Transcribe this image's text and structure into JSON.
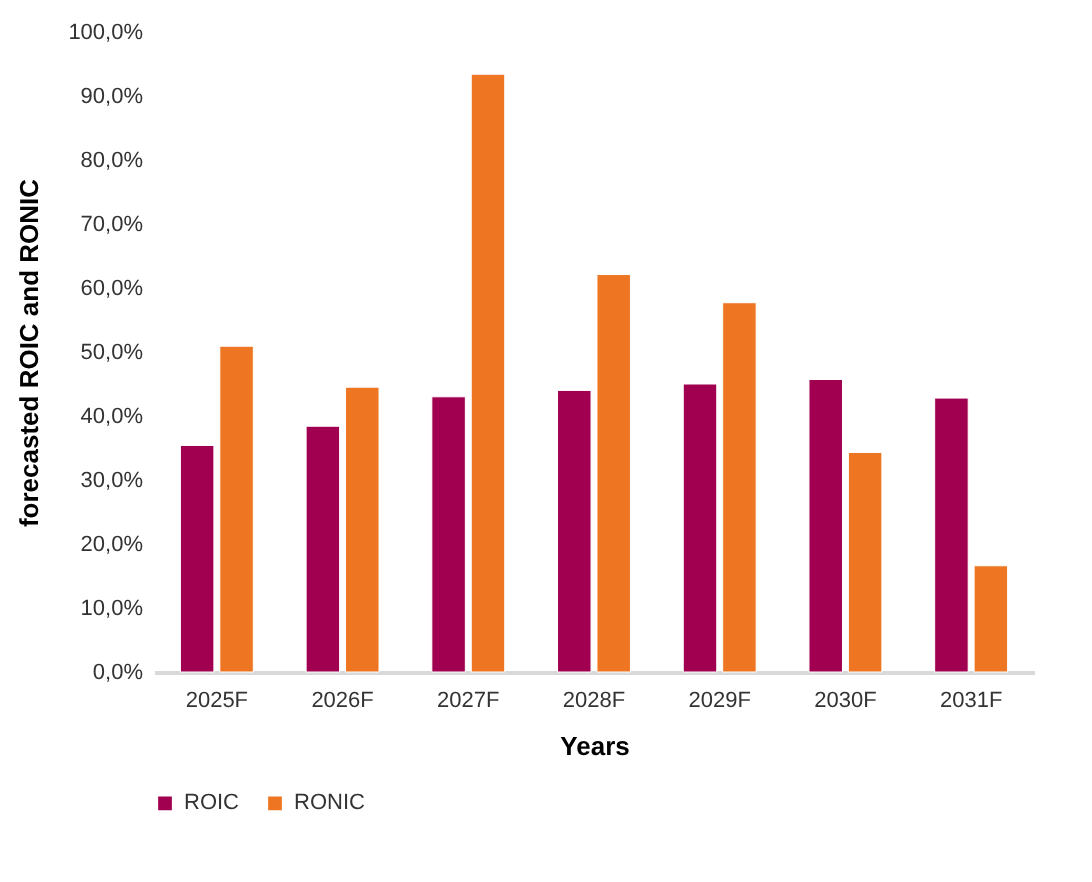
{
  "chart_data": {
    "type": "bar",
    "xlabel": "Years",
    "ylabel": "forecasted ROIC and RONIC",
    "categories": [
      "2025F",
      "2026F",
      "2027F",
      "2028F",
      "2029F",
      "2030F",
      "2031F"
    ],
    "series": [
      {
        "name": "ROIC",
        "color": "#a0004f",
        "values": [
          35.4,
          38.4,
          43.0,
          44.0,
          45.0,
          45.7,
          42.8
        ]
      },
      {
        "name": "RONIC",
        "color": "#ee7623",
        "values": [
          50.9,
          44.5,
          93.4,
          62.1,
          57.7,
          34.3,
          16.6
        ]
      }
    ],
    "ylim": [
      0,
      100
    ],
    "yticks": [
      {
        "value": 0,
        "label": "0,0%"
      },
      {
        "value": 10,
        "label": "10,0%"
      },
      {
        "value": 20,
        "label": "20,0%"
      },
      {
        "value": 30,
        "label": "30,0%"
      },
      {
        "value": 40,
        "label": "40,0%"
      },
      {
        "value": 50,
        "label": "50,0%"
      },
      {
        "value": 60,
        "label": "60,0%"
      },
      {
        "value": 70,
        "label": "70,0%"
      },
      {
        "value": 80,
        "label": "80,0%"
      },
      {
        "value": 90,
        "label": "90,0%"
      },
      {
        "value": 100,
        "label": "100,0%"
      }
    ],
    "grid": false,
    "legend": "bottom"
  }
}
